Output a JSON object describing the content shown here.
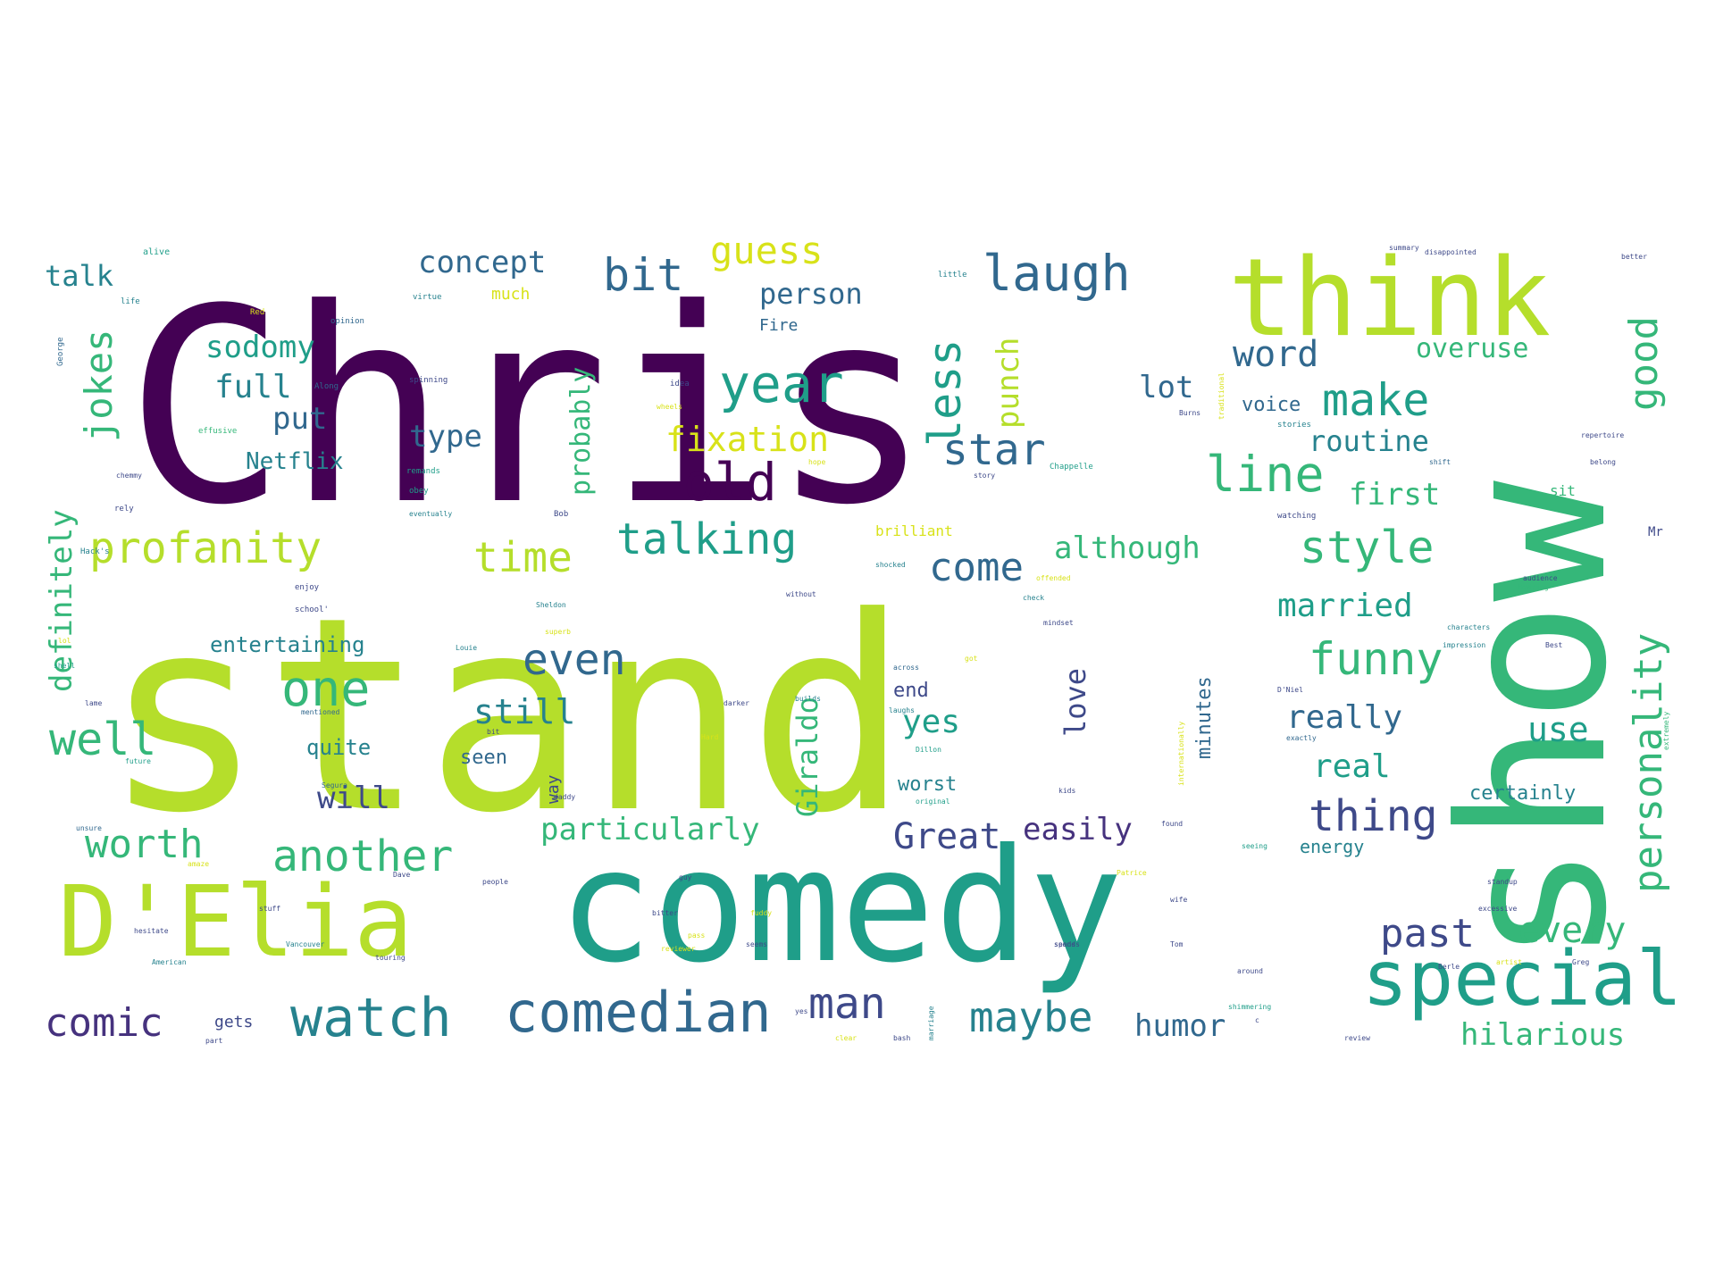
{
  "colors": {
    "background": "#ffffff",
    "palette": {
      "dark_purple": "#440154",
      "purple": "#46327e",
      "indigo": "#3e4989",
      "blue": "#31688e",
      "steel": "#26828e",
      "teal": "#1f9e89",
      "sea": "#35b779",
      "green": "#6ece58",
      "lime": "#b5de2b",
      "yellow": "#d8e219"
    }
  },
  "words": [
    {
      "text": "Chris",
      "color": "dark_purple"
    },
    {
      "text": "stand",
      "color": "lime"
    },
    {
      "text": "comedy",
      "color": "teal"
    },
    {
      "text": "show",
      "color": "sea"
    },
    {
      "text": "think",
      "color": "lime"
    },
    {
      "text": "D'Elia",
      "color": "lime"
    },
    {
      "text": "special",
      "color": "teal"
    },
    {
      "text": "comedian",
      "color": "blue"
    },
    {
      "text": "watch",
      "color": "steel"
    },
    {
      "text": "old",
      "color": "dark_purple"
    },
    {
      "text": "year",
      "color": "teal"
    },
    {
      "text": "laugh",
      "color": "blue"
    },
    {
      "text": "less",
      "color": "teal"
    },
    {
      "text": "profanity",
      "color": "lime"
    },
    {
      "text": "one",
      "color": "sea"
    },
    {
      "text": "well",
      "color": "sea"
    },
    {
      "text": "another",
      "color": "sea"
    },
    {
      "text": "talking",
      "color": "teal"
    },
    {
      "text": "personality",
      "color": "sea"
    },
    {
      "text": "good",
      "color": "sea"
    },
    {
      "text": "make",
      "color": "teal"
    },
    {
      "text": "line",
      "color": "sea"
    },
    {
      "text": "style",
      "color": "sea"
    },
    {
      "text": "funny",
      "color": "sea"
    },
    {
      "text": "even",
      "color": "blue"
    },
    {
      "text": "time",
      "color": "lime"
    },
    {
      "text": "come",
      "color": "blue"
    },
    {
      "text": "star",
      "color": "blue"
    },
    {
      "text": "bit",
      "color": "blue"
    },
    {
      "text": "guess",
      "color": "yellow"
    },
    {
      "text": "concept",
      "color": "blue"
    },
    {
      "text": "jokes",
      "color": "sea"
    },
    {
      "text": "definitely",
      "color": "sea"
    },
    {
      "text": "sodomy",
      "color": "teal"
    },
    {
      "text": "full",
      "color": "steel"
    },
    {
      "text": "put",
      "color": "blue"
    },
    {
      "text": "talk",
      "color": "steel"
    },
    {
      "text": "Netflix",
      "color": "steel"
    },
    {
      "text": "type",
      "color": "blue"
    },
    {
      "text": "probably",
      "color": "sea"
    },
    {
      "text": "fixation",
      "color": "yellow"
    },
    {
      "text": "punch",
      "color": "lime"
    },
    {
      "text": "person",
      "color": "blue"
    },
    {
      "text": "word",
      "color": "blue"
    },
    {
      "text": "overuse",
      "color": "sea"
    },
    {
      "text": "lot",
      "color": "blue"
    },
    {
      "text": "routine",
      "color": "steel"
    },
    {
      "text": "first",
      "color": "sea"
    },
    {
      "text": "married",
      "color": "teal"
    },
    {
      "text": "really",
      "color": "blue"
    },
    {
      "text": "use",
      "color": "teal"
    },
    {
      "text": "real",
      "color": "teal"
    },
    {
      "text": "thing",
      "color": "indigo"
    },
    {
      "text": "every",
      "color": "sea"
    },
    {
      "text": "past",
      "color": "indigo"
    },
    {
      "text": "hilarious",
      "color": "sea"
    },
    {
      "text": "humor",
      "color": "blue"
    },
    {
      "text": "maybe",
      "color": "steel"
    },
    {
      "text": "man",
      "color": "indigo"
    },
    {
      "text": "comic",
      "color": "purple"
    },
    {
      "text": "worth",
      "color": "sea"
    },
    {
      "text": "will",
      "color": "indigo"
    },
    {
      "text": "particularly",
      "color": "sea"
    },
    {
      "text": "Great",
      "color": "indigo"
    },
    {
      "text": "easily",
      "color": "purple"
    },
    {
      "text": "Giraldo",
      "color": "sea"
    },
    {
      "text": "love",
      "color": "indigo"
    },
    {
      "text": "yes",
      "color": "teal"
    },
    {
      "text": "still",
      "color": "steel"
    },
    {
      "text": "although",
      "color": "sea"
    },
    {
      "text": "entertaining",
      "color": "steel"
    },
    {
      "text": "quite",
      "color": "steel"
    },
    {
      "text": "seen",
      "color": "blue"
    },
    {
      "text": "end",
      "color": "indigo"
    },
    {
      "text": "worst",
      "color": "steel"
    },
    {
      "text": "minutes",
      "color": "blue"
    },
    {
      "text": "certainly",
      "color": "steel"
    },
    {
      "text": "energy",
      "color": "steel"
    },
    {
      "text": "voice",
      "color": "blue"
    },
    {
      "text": "much",
      "color": "yellow"
    },
    {
      "text": "Fire",
      "color": "blue"
    },
    {
      "text": "brilliant",
      "color": "yellow"
    },
    {
      "text": "way",
      "color": "indigo"
    },
    {
      "text": "gets",
      "color": "indigo"
    },
    {
      "text": "sit",
      "color": "sea"
    },
    {
      "text": "Mr",
      "color": "indigo"
    },
    {
      "text": "alive",
      "color": "teal"
    },
    {
      "text": "little",
      "color": "steel"
    },
    {
      "text": "virtue",
      "color": "steel"
    },
    {
      "text": "opinion",
      "color": "blue"
    },
    {
      "text": "Red",
      "color": "yellow"
    },
    {
      "text": "life",
      "color": "steel"
    },
    {
      "text": "George",
      "color": "blue"
    },
    {
      "text": "spinning",
      "color": "indigo"
    },
    {
      "text": "Along",
      "color": "blue"
    },
    {
      "text": "effusive",
      "color": "sea"
    },
    {
      "text": "chemmy",
      "color": "indigo"
    },
    {
      "text": "rely",
      "color": "indigo"
    },
    {
      "text": "remands",
      "color": "teal"
    },
    {
      "text": "obey",
      "color": "teal"
    },
    {
      "text": "eventually",
      "color": "steel"
    },
    {
      "text": "Bob",
      "color": "indigo"
    },
    {
      "text": "idea",
      "color": "indigo"
    },
    {
      "text": "wheels",
      "color": "yellow"
    },
    {
      "text": "Chappelle",
      "color": "teal"
    },
    {
      "text": "story",
      "color": "indigo"
    },
    {
      "text": "summary",
      "color": "indigo"
    },
    {
      "text": "disappointed",
      "color": "indigo"
    },
    {
      "text": "better",
      "color": "indigo"
    },
    {
      "text": "Burns",
      "color": "indigo"
    },
    {
      "text": "stories",
      "color": "steel"
    },
    {
      "text": "repertoire",
      "color": "indigo"
    },
    {
      "text": "belong",
      "color": "indigo"
    },
    {
      "text": "watching",
      "color": "indigo"
    },
    {
      "text": "shift",
      "color": "blue"
    },
    {
      "text": "traditional",
      "color": "yellow"
    },
    {
      "text": "Hack's",
      "color": "steel"
    },
    {
      "text": "enjoy",
      "color": "indigo"
    },
    {
      "text": "school'",
      "color": "indigo"
    },
    {
      "text": "Sheldon",
      "color": "steel"
    },
    {
      "text": "superb",
      "color": "yellow"
    },
    {
      "text": "shocked",
      "color": "steel"
    },
    {
      "text": "without",
      "color": "indigo"
    },
    {
      "text": "check",
      "color": "steel"
    },
    {
      "text": "mindset",
      "color": "indigo"
    },
    {
      "text": "offended",
      "color": "yellow"
    },
    {
      "text": "audience",
      "color": "indigo"
    },
    {
      "text": "hearing",
      "color": "sea"
    },
    {
      "text": "characters",
      "color": "steel"
    },
    {
      "text": "impression",
      "color": "steel"
    },
    {
      "text": "Best",
      "color": "indigo"
    },
    {
      "text": "extremely",
      "color": "sea"
    },
    {
      "text": "shell",
      "color": "teal"
    },
    {
      "text": "mentioned",
      "color": "blue"
    },
    {
      "text": "Louie",
      "color": "steel"
    },
    {
      "text": "darker",
      "color": "indigo"
    },
    {
      "text": "builds",
      "color": "steel"
    },
    {
      "text": "across",
      "color": "blue"
    },
    {
      "text": "got",
      "color": "yellow"
    },
    {
      "text": "internationally",
      "color": "yellow"
    },
    {
      "text": "D'Niel",
      "color": "indigo"
    },
    {
      "text": "exactly",
      "color": "blue"
    },
    {
      "text": "Segura",
      "color": "blue"
    },
    {
      "text": "future",
      "color": "teal"
    },
    {
      "text": "lame",
      "color": "indigo"
    },
    {
      "text": "Hard",
      "color": "yellow"
    },
    {
      "text": "Dillon",
      "color": "teal"
    },
    {
      "text": "kids",
      "color": "indigo"
    },
    {
      "text": "original",
      "color": "teal"
    },
    {
      "text": "found",
      "color": "indigo"
    },
    {
      "text": "daddy",
      "color": "indigo"
    },
    {
      "text": "unsure",
      "color": "blue"
    },
    {
      "text": "seeing",
      "color": "teal"
    },
    {
      "text": "amaze",
      "color": "yellow"
    },
    {
      "text": "Dave",
      "color": "indigo"
    },
    {
      "text": "people",
      "color": "indigo"
    },
    {
      "text": "guy",
      "color": "indigo"
    },
    {
      "text": "Patrice",
      "color": "yellow"
    },
    {
      "text": "bitter",
      "color": "indigo"
    },
    {
      "text": "fuddy",
      "color": "yellow"
    },
    {
      "text": "wife",
      "color": "indigo"
    },
    {
      "text": "seems",
      "color": "indigo"
    },
    {
      "text": "standup",
      "color": "indigo"
    },
    {
      "text": "excessive",
      "color": "indigo"
    },
    {
      "text": "stuff",
      "color": "indigo"
    },
    {
      "text": "hesitate",
      "color": "indigo"
    },
    {
      "text": "Vancouver",
      "color": "steel"
    },
    {
      "text": "touring",
      "color": "indigo"
    },
    {
      "text": "American",
      "color": "steel"
    },
    {
      "text": "reviewer",
      "color": "yellow"
    },
    {
      "text": "sends",
      "color": "indigo"
    },
    {
      "text": "pass",
      "color": "yellow"
    },
    {
      "text": "spends",
      "color": "indigo"
    },
    {
      "text": "Tom",
      "color": "indigo"
    },
    {
      "text": "around",
      "color": "indigo"
    },
    {
      "text": "Berle",
      "color": "indigo"
    },
    {
      "text": "artist",
      "color": "yellow"
    },
    {
      "text": "Greg",
      "color": "indigo"
    },
    {
      "text": "marriage",
      "color": "steel"
    },
    {
      "text": "clear",
      "color": "yellow"
    },
    {
      "text": "bash",
      "color": "indigo"
    },
    {
      "text": "shimmering",
      "color": "teal"
    },
    {
      "text": "review",
      "color": "indigo"
    },
    {
      "text": "part",
      "color": "indigo"
    },
    {
      "text": "c",
      "color": "indigo"
    },
    {
      "text": "bit",
      "color": "indigo"
    },
    {
      "text": "lol",
      "color": "yellow"
    },
    {
      "text": "laughs",
      "color": "steel"
    },
    {
      "text": "hope",
      "color": "yellow"
    },
    {
      "text": "yes",
      "color": "indigo"
    }
  ]
}
